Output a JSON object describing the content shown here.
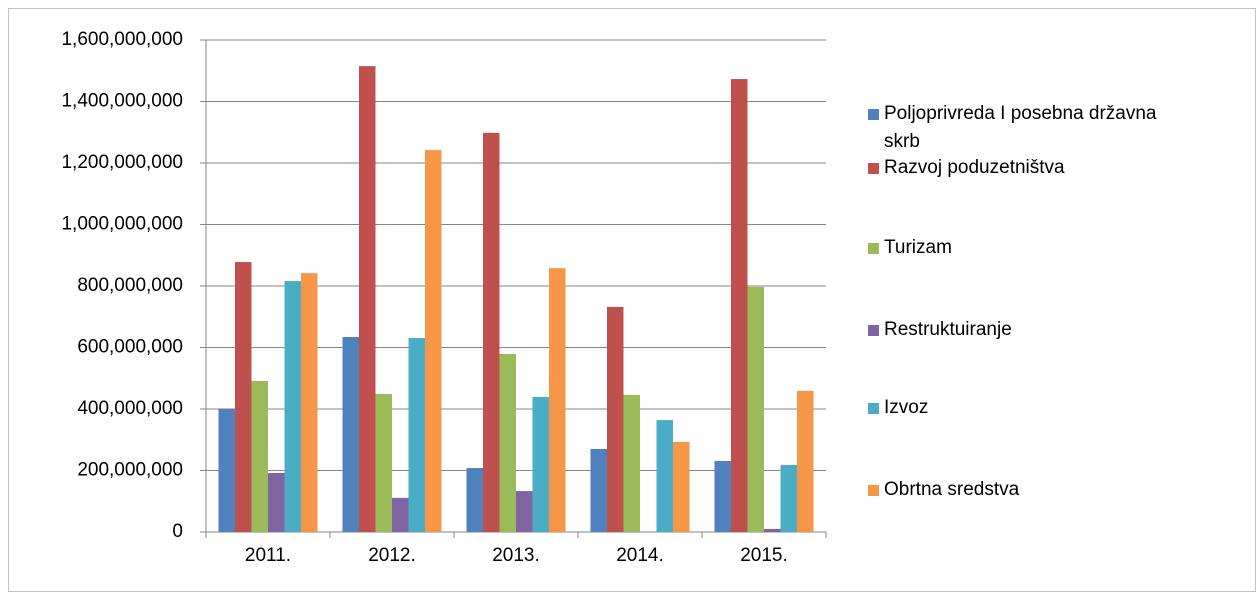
{
  "chart_data": {
    "type": "bar",
    "categories": [
      "2011.",
      "2012.",
      "2013.",
      "2014.",
      "2015."
    ],
    "series": [
      {
        "name": "Poljoprivreda I posebna državna skrb",
        "color": "#4f81bd",
        "values": [
          400000000,
          634000000,
          208000000,
          270000000,
          231000000
        ]
      },
      {
        "name": "Razvoj poduzetništva",
        "color": "#c0504d",
        "values": [
          878000000,
          1515000000,
          1298000000,
          732000000,
          1473000000
        ]
      },
      {
        "name": "Turizam",
        "color": "#9bbb59",
        "values": [
          491000000,
          449000000,
          579000000,
          446000000,
          797000000
        ]
      },
      {
        "name": "Restruktuiranje",
        "color": "#8064a2",
        "values": [
          192000000,
          111000000,
          133000000,
          0,
          10000000
        ]
      },
      {
        "name": "Izvoz",
        "color": "#4bacc6",
        "values": [
          816000000,
          631000000,
          439000000,
          364000000,
          218000000
        ]
      },
      {
        "name": "Obrtna sredstva",
        "color": "#f79646",
        "values": [
          842000000,
          1242000000,
          858000000,
          293000000,
          459000000
        ]
      }
    ],
    "ylim": [
      0,
      1600000000
    ],
    "yticks": [
      0,
      {
        "value": 200000000,
        "label": "200,000,000"
      },
      {
        "value": 400000000,
        "label": "400,000,000"
      },
      {
        "value": 600000000,
        "label": "600,000,000"
      },
      {
        "value": 800000000,
        "label": "800,000,000"
      },
      {
        "value": 1000000000,
        "label": "1,000,000,000"
      },
      {
        "value": 1200000000,
        "label": "1,200,000,000"
      },
      {
        "value": 1400000000,
        "label": "1,400,000,000"
      },
      {
        "value": 1600000000,
        "label": "1,600,000,000"
      }
    ],
    "grid": true,
    "legend": "right"
  }
}
